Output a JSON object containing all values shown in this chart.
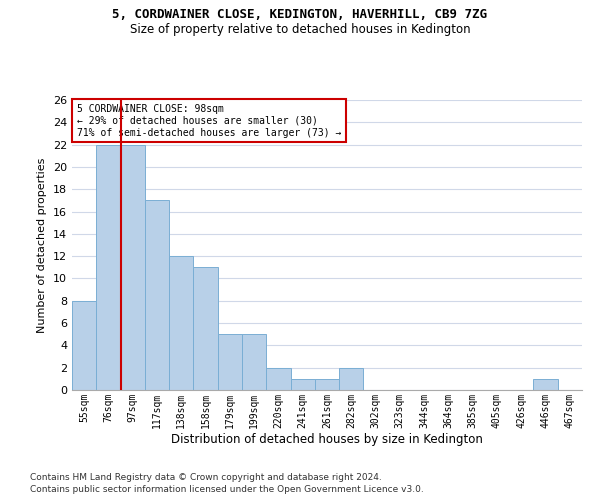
{
  "title1": "5, CORDWAINER CLOSE, KEDINGTON, HAVERHILL, CB9 7ZG",
  "title2": "Size of property relative to detached houses in Kedington",
  "xlabel": "Distribution of detached houses by size in Kedington",
  "ylabel": "Number of detached properties",
  "categories": [
    "55sqm",
    "76sqm",
    "97sqm",
    "117sqm",
    "138sqm",
    "158sqm",
    "179sqm",
    "199sqm",
    "220sqm",
    "241sqm",
    "261sqm",
    "282sqm",
    "302sqm",
    "323sqm",
    "344sqm",
    "364sqm",
    "385sqm",
    "405sqm",
    "426sqm",
    "446sqm",
    "467sqm"
  ],
  "values": [
    8,
    22,
    22,
    17,
    12,
    11,
    5,
    5,
    2,
    1,
    1,
    2,
    0,
    0,
    0,
    0,
    0,
    0,
    0,
    1,
    0
  ],
  "bar_color": "#b8d0e8",
  "bar_edge_color": "#7aaed4",
  "vline_x_index": 2,
  "vline_color": "#cc0000",
  "annotation_text": "5 CORDWAINER CLOSE: 98sqm\n← 29% of detached houses are smaller (30)\n71% of semi-detached houses are larger (73) →",
  "annotation_box_color": "#ffffff",
  "annotation_box_edge_color": "#cc0000",
  "ylim": [
    0,
    26
  ],
  "yticks": [
    0,
    2,
    4,
    6,
    8,
    10,
    12,
    14,
    16,
    18,
    20,
    22,
    24,
    26
  ],
  "footer1": "Contains HM Land Registry data © Crown copyright and database right 2024.",
  "footer2": "Contains public sector information licensed under the Open Government Licence v3.0.",
  "bg_color": "#ffffff",
  "grid_color": "#d0d8e8"
}
